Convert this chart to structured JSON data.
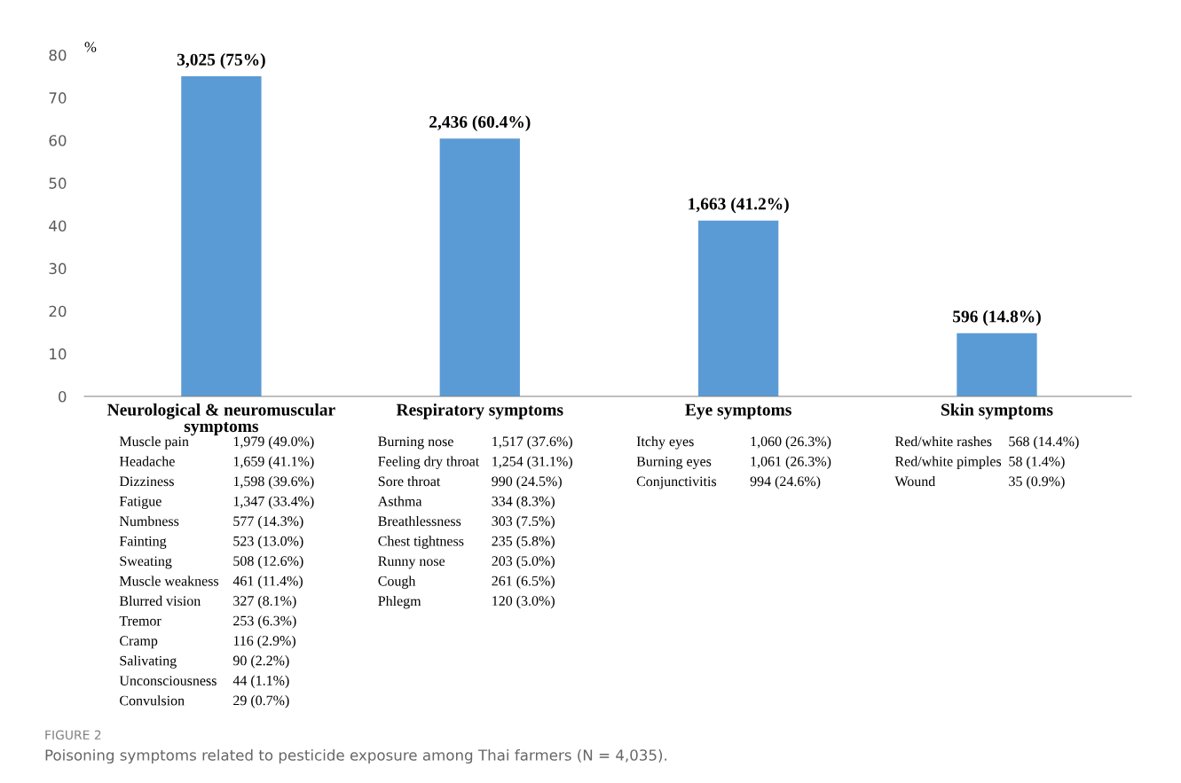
{
  "chart_data": {
    "type": "bar",
    "ylabel": "%",
    "categories": [
      "Neurological & neuromuscular symptoms",
      "Respiratory symptoms",
      "Eye symptoms",
      "Skin symptoms"
    ],
    "values": [
      75,
      60.4,
      41.2,
      14.8
    ],
    "value_labels": [
      "3,025 (75%)",
      "2,436 (60.4%)",
      "1,663 (41.2%)",
      "596 (14.8%)"
    ],
    "color": "#5b9bd5",
    "ylim": [
      0,
      80
    ],
    "yticks": [
      0,
      10,
      20,
      30,
      40,
      50,
      60,
      70,
      80
    ],
    "grid": false,
    "annotations": [
      "Muscle pain\nHeadache\nDizziness\nFatigue\nNumbness\nFainting\nSweating\nMuscle weakness\nBlurred vision\nTremor\nCramp\nSalivating\nUnconsciousness\nConvulsion",
      "1,979 (49.0%)\n1,659 (41.1%)\n1,598 (39.6%)\n1,347 (33.4%)\n577 (14.3%)\n523 (13.0%)\n508 (12.6%)\n461 (11.4%)\n327 (8.1%)\n253 (6.3%)\n116 (2.9%)\n90 (2.2%)\n44 (1.1%)\n29 (0.7%)",
      "Burning nose\nFeeling dry throat\nSore throat\nAsthma\nBreathlessness\nChest tightness\nRunny nose\nCough\nPhlegm",
      "1,517 (37.6%)\n1,254 (31.1%)\n990 (24.5%)\n334 (8.3%)\n303 (7.5%)\n235 (5.8%)\n203 (5.0%)\n261 (6.5%)\n120 (3.0%)",
      "Itchy eyes\nBurning eyes\nConjunctivitis",
      "1,060 (26.3%)\n1,061 (26.3%)\n994 (24.6%)",
      "Red/white rashes\nRed/white pimples\nWound",
      "568 (14.4%)\n58 (1.4%)\n35 (0.9%)",
      "FIGURE 2",
      "Poisoning symptoms related to pesticide exposure among Thai farmers (N = 4,035)."
    ]
  }
}
